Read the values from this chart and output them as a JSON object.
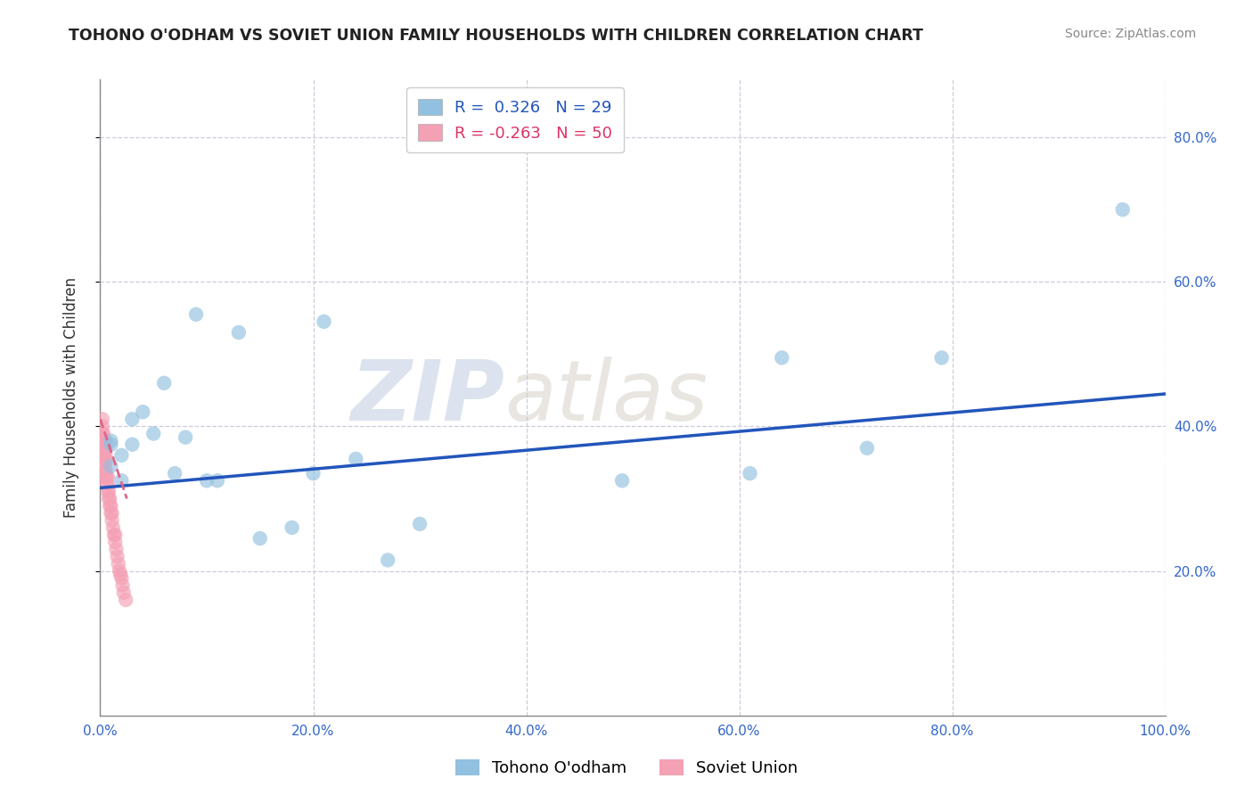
{
  "title": "TOHONO O'ODHAM VS SOVIET UNION FAMILY HOUSEHOLDS WITH CHILDREN CORRELATION CHART",
  "source": "Source: ZipAtlas.com",
  "ylabel": "Family Households with Children",
  "xlim": [
    0.0,
    1.0
  ],
  "ylim": [
    0.0,
    0.88
  ],
  "xticks": [
    0.0,
    0.2,
    0.4,
    0.6,
    0.8,
    1.0
  ],
  "xtick_labels": [
    "0.0%",
    "20.0%",
    "40.0%",
    "60.0%",
    "80.0%",
    "100.0%"
  ],
  "ytick_positions": [
    0.2,
    0.4,
    0.6,
    0.8
  ],
  "ytick_labels": [
    "20.0%",
    "40.0%",
    "60.0%",
    "80.0%"
  ],
  "watermark_zip": "ZIP",
  "watermark_atlas": "atlas",
  "legend_r1": "R =  0.326",
  "legend_n1": "N = 29",
  "legend_r2": "R = -0.263",
  "legend_n2": "N = 50",
  "blue_color": "#92C0E0",
  "pink_color": "#F4A0B5",
  "line_blue": "#2255BB",
  "line_pink": "#DD6688",
  "background": "#FFFFFF",
  "grid_color": "#CCCCDD",
  "tohono_x": [
    0.01,
    0.01,
    0.01,
    0.02,
    0.02,
    0.03,
    0.03,
    0.04,
    0.05,
    0.06,
    0.07,
    0.08,
    0.09,
    0.1,
    0.11,
    0.13,
    0.15,
    0.18,
    0.2,
    0.21,
    0.24,
    0.27,
    0.3,
    0.49,
    0.61,
    0.64,
    0.72,
    0.79,
    0.96
  ],
  "tohono_y": [
    0.345,
    0.375,
    0.38,
    0.325,
    0.36,
    0.41,
    0.375,
    0.42,
    0.39,
    0.46,
    0.335,
    0.385,
    0.555,
    0.325,
    0.325,
    0.53,
    0.245,
    0.26,
    0.335,
    0.545,
    0.355,
    0.215,
    0.265,
    0.325,
    0.335,
    0.495,
    0.37,
    0.495,
    0.7
  ],
  "soviet_x": [
    0.002,
    0.002,
    0.002,
    0.002,
    0.002,
    0.002,
    0.002,
    0.002,
    0.003,
    0.003,
    0.003,
    0.003,
    0.003,
    0.004,
    0.004,
    0.004,
    0.004,
    0.004,
    0.005,
    0.005,
    0.005,
    0.005,
    0.005,
    0.005,
    0.006,
    0.006,
    0.007,
    0.007,
    0.007,
    0.008,
    0.008,
    0.009,
    0.009,
    0.01,
    0.01,
    0.011,
    0.011,
    0.012,
    0.013,
    0.014,
    0.014,
    0.015,
    0.016,
    0.017,
    0.018,
    0.019,
    0.02,
    0.021,
    0.022,
    0.024
  ],
  "soviet_y": [
    0.36,
    0.37,
    0.37,
    0.38,
    0.38,
    0.39,
    0.4,
    0.41,
    0.35,
    0.36,
    0.37,
    0.38,
    0.39,
    0.34,
    0.35,
    0.36,
    0.37,
    0.38,
    0.33,
    0.34,
    0.35,
    0.36,
    0.37,
    0.38,
    0.32,
    0.33,
    0.31,
    0.32,
    0.33,
    0.3,
    0.31,
    0.29,
    0.3,
    0.28,
    0.29,
    0.27,
    0.28,
    0.26,
    0.25,
    0.24,
    0.25,
    0.23,
    0.22,
    0.21,
    0.2,
    0.195,
    0.19,
    0.18,
    0.17,
    0.16
  ],
  "blue_line_x0": 0.0,
  "blue_line_y0": 0.315,
  "blue_line_x1": 1.0,
  "blue_line_y1": 0.445,
  "pink_line_x0": 0.0,
  "pink_line_y0": 0.41,
  "pink_line_x1": 0.025,
  "pink_line_y1": 0.3
}
